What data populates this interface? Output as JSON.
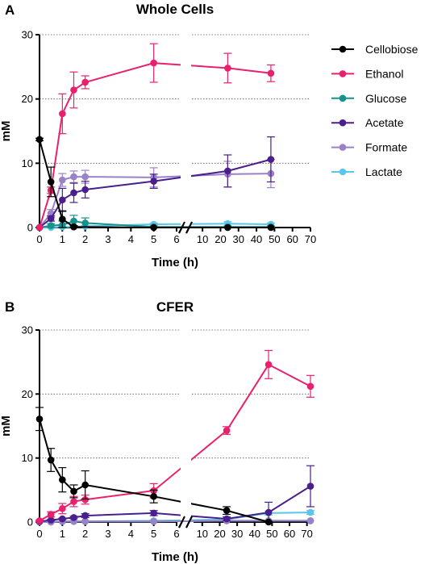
{
  "legend_title": "",
  "colors": {
    "Cellobiose": "#000000",
    "Ethanol": "#e8206e",
    "Glucose": "#17918b",
    "Acetate": "#4a1e8c",
    "Formate": "#9b82c8",
    "Lactate": "#5cc6ea"
  },
  "chart_data": [
    {
      "type": "line",
      "panel": "A",
      "title": "Whole Cells",
      "xlabel": "Time (h)",
      "ylabel": "mM",
      "ylim": [
        0,
        30
      ],
      "yticks": [
        0,
        10,
        20,
        30
      ],
      "x_segments": [
        {
          "range": [
            0,
            6
          ],
          "ticks": [
            0,
            1,
            2,
            3,
            4,
            5,
            6
          ]
        },
        {
          "range": [
            5,
            70
          ],
          "ticks": [
            10,
            20,
            30,
            40,
            50,
            60,
            70
          ]
        }
      ],
      "grid": "horizontal dotted",
      "legend": "right",
      "series": [
        {
          "name": "Cellobiose",
          "x": [
            0,
            0.5,
            1,
            1.5,
            5,
            24,
            48
          ],
          "y": [
            13.7,
            7.1,
            1.3,
            0.1,
            0,
            0,
            0
          ],
          "err": [
            0.2,
            2.3,
            1.3,
            0.2,
            0,
            0,
            0
          ]
        },
        {
          "name": "Ethanol",
          "x": [
            0,
            0.5,
            1,
            1.5,
            2,
            5,
            24,
            48
          ],
          "y": [
            0,
            5.8,
            17.7,
            21.4,
            22.6,
            25.6,
            24.8,
            24.0
          ],
          "err": [
            0,
            0.5,
            3.1,
            2.8,
            1.0,
            3.0,
            2.3,
            1.3
          ]
        },
        {
          "name": "Glucose",
          "x": [
            0,
            0.5,
            1,
            1.5,
            2,
            5,
            24,
            48
          ],
          "y": [
            0,
            0.3,
            0.4,
            1.0,
            0.7,
            0.1,
            0.1,
            0.1
          ],
          "err": [
            0,
            0.3,
            0.6,
            0.9,
            0.8,
            0.1,
            0.1,
            0.1
          ]
        },
        {
          "name": "Acetate",
          "x": [
            0,
            0.5,
            1,
            1.5,
            2,
            5,
            24,
            48
          ],
          "y": [
            0,
            1.4,
            4.3,
            5.4,
            5.9,
            7.2,
            8.8,
            10.6
          ],
          "err": [
            0,
            0.4,
            1.8,
            1.5,
            1.3,
            1.1,
            2.5,
            3.5
          ]
        },
        {
          "name": "Formate",
          "x": [
            0,
            0.5,
            1,
            1.5,
            2,
            5,
            24,
            48
          ],
          "y": [
            0,
            2.2,
            7.4,
            7.9,
            7.9,
            7.8,
            8.3,
            8.4
          ],
          "err": [
            0,
            0.6,
            1.0,
            0.9,
            1.0,
            1.5,
            2.0,
            2.2
          ]
        },
        {
          "name": "Lactate",
          "x": [
            0,
            0.5,
            1,
            1.5,
            2,
            5,
            24,
            48
          ],
          "y": [
            0,
            0,
            0.1,
            0.1,
            0.2,
            0.5,
            0.6,
            0.5
          ],
          "err": [
            0,
            0,
            0.1,
            0.1,
            0.1,
            0.2,
            0.3,
            0.2
          ]
        }
      ]
    },
    {
      "type": "line",
      "panel": "B",
      "title": "CFER",
      "xlabel": "Time (h)",
      "ylabel": "mM",
      "ylim": [
        0,
        30
      ],
      "yticks": [
        0,
        10,
        20,
        30
      ],
      "x_segments": [
        {
          "range": [
            0,
            6
          ],
          "ticks": [
            0,
            1,
            2,
            3,
            4,
            5,
            6
          ]
        },
        {
          "range": [
            5,
            72
          ],
          "ticks": [
            10,
            20,
            30,
            40,
            50,
            60,
            70
          ]
        }
      ],
      "grid": "horizontal dotted",
      "legend": "none",
      "series": [
        {
          "name": "Cellobiose",
          "x": [
            0,
            0.5,
            1,
            1.5,
            2,
            5,
            24,
            48
          ],
          "y": [
            16.1,
            9.7,
            6.6,
            4.8,
            5.8,
            4.0,
            1.8,
            0
          ],
          "err": [
            1.8,
            1.8,
            1.9,
            1.0,
            2.2,
            1.0,
            0.6,
            0.1
          ]
        },
        {
          "name": "Ethanol",
          "x": [
            0,
            0.5,
            1,
            1.5,
            2,
            5,
            24,
            48,
            72
          ],
          "y": [
            0.2,
            1.2,
            2.1,
            3.2,
            3.5,
            4.9,
            14.3,
            24.6,
            21.2
          ],
          "err": [
            0.1,
            0.4,
            0.8,
            0.8,
            0.7,
            1.1,
            0.6,
            2.2,
            1.7
          ]
        },
        {
          "name": "Glucose",
          "x": [
            0,
            0.5,
            1,
            1.5,
            2,
            5,
            24,
            48,
            72
          ],
          "y": [
            0,
            0,
            0.1,
            0.1,
            0.1,
            0.1,
            0.2,
            0.2,
            0.2
          ],
          "err": [
            0,
            0,
            0,
            0,
            0,
            0,
            0,
            0,
            0
          ]
        },
        {
          "name": "Acetate",
          "x": [
            0,
            0.5,
            1,
            1.5,
            2,
            5,
            24,
            48,
            72
          ],
          "y": [
            0.1,
            0.3,
            0.5,
            0.7,
            1.0,
            1.4,
            0.5,
            1.5,
            5.6
          ],
          "err": [
            0,
            0.1,
            0.1,
            0.2,
            0.3,
            0.4,
            0.3,
            1.6,
            3.2
          ]
        },
        {
          "name": "Formate",
          "x": [
            0,
            0.5,
            1,
            1.5,
            2,
            5,
            24,
            48,
            72
          ],
          "y": [
            0,
            0,
            0.1,
            0.1,
            0.1,
            0.1,
            0.2,
            0.2,
            0.2
          ],
          "err": [
            0,
            0,
            0,
            0,
            0,
            0,
            0,
            0,
            0
          ]
        },
        {
          "name": "Lactate",
          "x": [
            0,
            0.5,
            1,
            1.5,
            2,
            5,
            24,
            48,
            72
          ],
          "y": [
            0,
            0,
            0.1,
            0.1,
            0.1,
            0.2,
            0.4,
            1.4,
            1.5
          ],
          "err": [
            0,
            0,
            0,
            0,
            0,
            0.1,
            0.2,
            0.3,
            0.3
          ]
        }
      ]
    }
  ]
}
